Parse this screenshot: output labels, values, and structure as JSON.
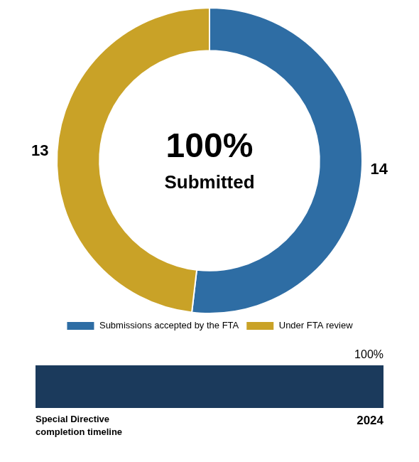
{
  "chart_data": [
    {
      "type": "pie",
      "categories": [
        "Submissions accepted by the FTA",
        "Under FTA review"
      ],
      "values": [
        14,
        13
      ],
      "colors": [
        "#2E6DA4",
        "#C9A227"
      ],
      "data_labels": true,
      "legend": "bottom",
      "annotations": [
        "100%",
        "Submitted"
      ]
    },
    {
      "type": "bar",
      "orientation": "horizontal",
      "categories": [
        null
      ],
      "values": [
        100
      ],
      "value_labels": [
        "100%"
      ],
      "data_labels": true,
      "color": "#1B3A5C",
      "xlim": [
        0,
        100
      ],
      "tick_labels": false,
      "annotations": [
        "Special Directive\ncompletion timeline",
        "2024"
      ]
    }
  ]
}
